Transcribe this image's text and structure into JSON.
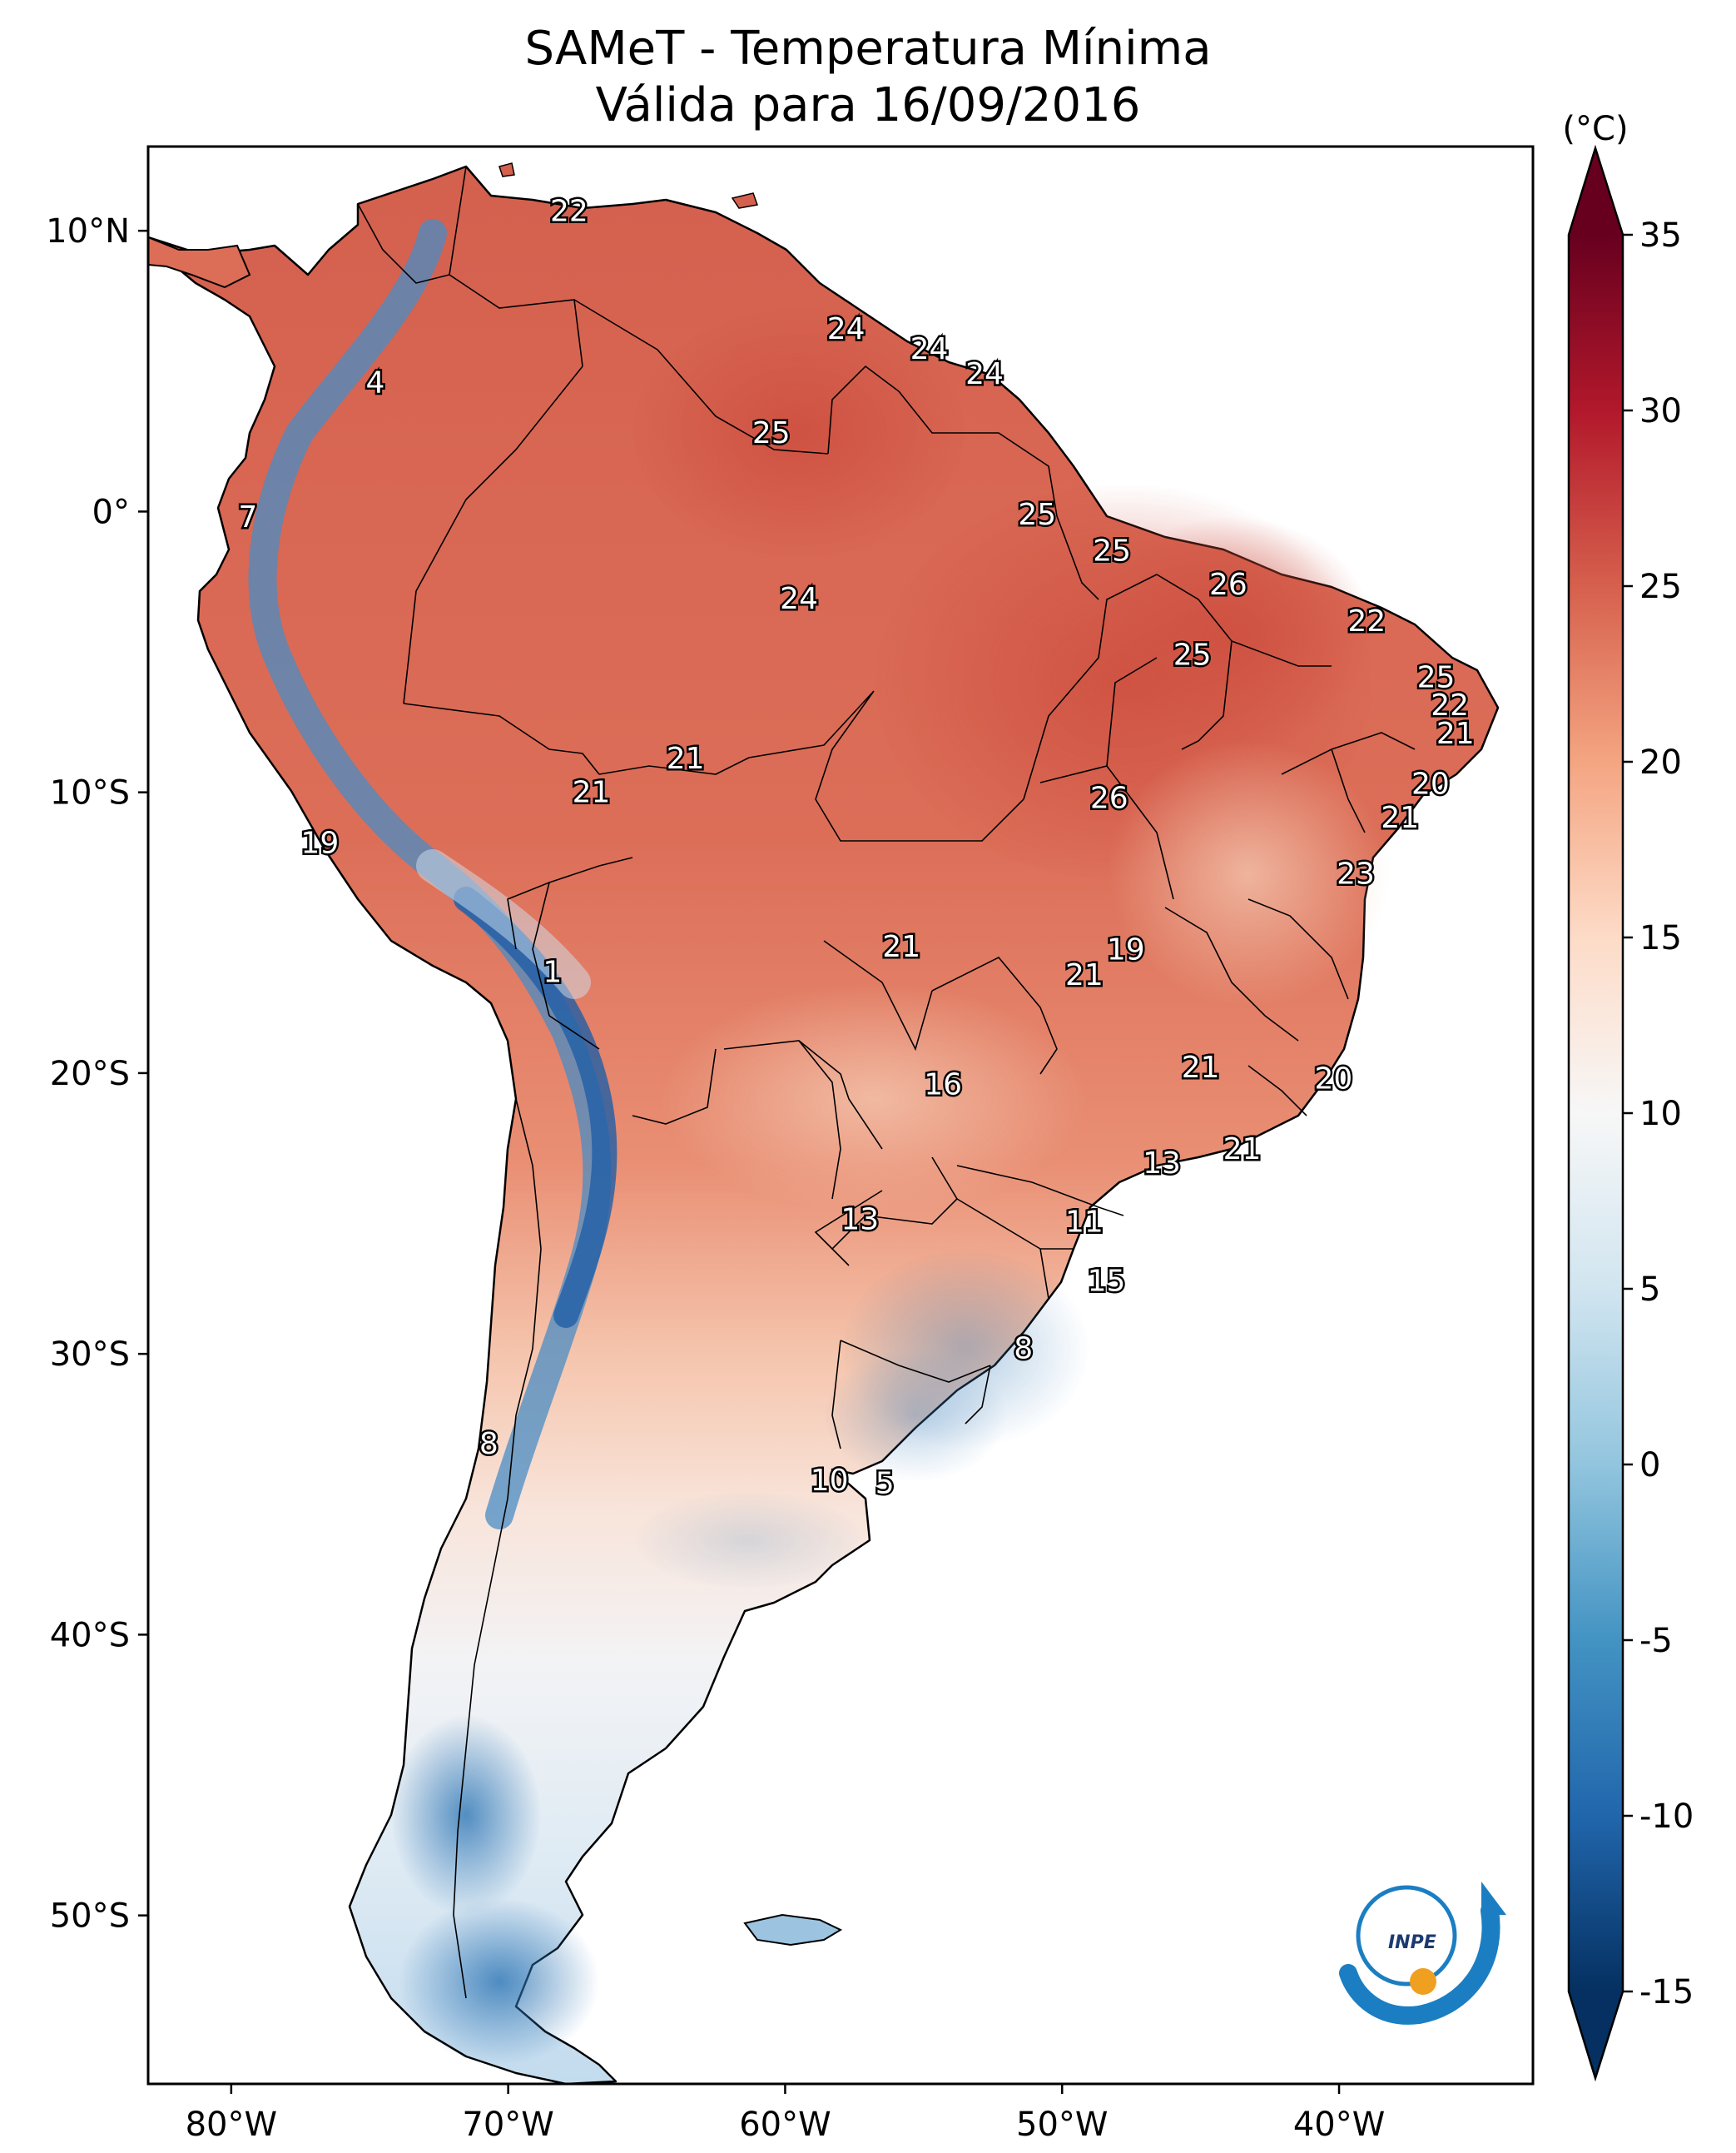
{
  "title": {
    "line1": "SAMeT - Temperatura Mínima",
    "line2": "Válida para 16/09/2016"
  },
  "colorbar": {
    "unit": "(°C)",
    "ticks": [
      "35",
      "30",
      "25",
      "20",
      "15",
      "10",
      "5",
      "0",
      "-5",
      "-10",
      "-15"
    ],
    "tick_values": [
      35,
      30,
      25,
      20,
      15,
      10,
      5,
      0,
      -5,
      -10,
      -15
    ],
    "min": -15,
    "max": 35,
    "colors": [
      "#053061",
      "#2166ac",
      "#4393c3",
      "#92c5de",
      "#d1e5f0",
      "#f7f7f7",
      "#fddbc7",
      "#f4a582",
      "#d6604d",
      "#b2182b",
      "#67001f"
    ]
  },
  "axes": {
    "lat_ticks": [
      "10°N",
      "0°",
      "10°S",
      "20°S",
      "30°S",
      "40°S",
      "50°S"
    ],
    "lat_values": [
      10,
      0,
      -10,
      -20,
      -30,
      -40,
      -50
    ],
    "lon_ticks": [
      "80°W",
      "70°W",
      "60°W",
      "50°W",
      "40°W"
    ],
    "lon_values": [
      -80,
      -70,
      -60,
      -50,
      -40
    ],
    "lon_range": [
      -83,
      -33
    ],
    "lat_range": [
      -56,
      13
    ]
  },
  "logo": {
    "text": "INPE",
    "accent": "#1b7ec2",
    "dot": "#f0a020"
  },
  "stations": [
    {
      "v": "22",
      "lon": -67.8,
      "lat": 10.7
    },
    {
      "v": "24",
      "lon": -57.8,
      "lat": 6.5
    },
    {
      "v": "24",
      "lon": -54.8,
      "lat": 5.8
    },
    {
      "v": "24",
      "lon": -52.8,
      "lat": 4.9
    },
    {
      "v": "4",
      "lon": -74.8,
      "lat": 4.6
    },
    {
      "v": "25",
      "lon": -60.5,
      "lat": 2.8
    },
    {
      "v": "7",
      "lon": -79.4,
      "lat": -0.2
    },
    {
      "v": "25",
      "lon": -50.9,
      "lat": -0.1
    },
    {
      "v": "25",
      "lon": -48.2,
      "lat": -1.4
    },
    {
      "v": "26",
      "lon": -44.0,
      "lat": -2.6
    },
    {
      "v": "24",
      "lon": -59.5,
      "lat": -3.1
    },
    {
      "v": "22",
      "lon": -39.0,
      "lat": -3.9
    },
    {
      "v": "25",
      "lon": -45.3,
      "lat": -5.1
    },
    {
      "v": "25",
      "lon": -36.5,
      "lat": -5.9
    },
    {
      "v": "22",
      "lon": -36.0,
      "lat": -6.9
    },
    {
      "v": "21",
      "lon": -35.8,
      "lat": -7.9
    },
    {
      "v": "21",
      "lon": -63.6,
      "lat": -8.8
    },
    {
      "v": "20",
      "lon": -36.7,
      "lat": -9.7
    },
    {
      "v": "21",
      "lon": -67.0,
      "lat": -10.0
    },
    {
      "v": "26",
      "lon": -48.3,
      "lat": -10.2
    },
    {
      "v": "21",
      "lon": -37.8,
      "lat": -10.9
    },
    {
      "v": "19",
      "lon": -76.8,
      "lat": -11.8
    },
    {
      "v": "23",
      "lon": -39.4,
      "lat": -12.9
    },
    {
      "v": "21",
      "lon": -55.8,
      "lat": -15.5
    },
    {
      "v": "19",
      "lon": -47.7,
      "lat": -15.6
    },
    {
      "v": "21",
      "lon": -49.2,
      "lat": -16.5
    },
    {
      "v": "1",
      "lon": -68.4,
      "lat": -16.4
    },
    {
      "v": "16",
      "lon": -54.3,
      "lat": -20.4
    },
    {
      "v": "21",
      "lon": -45.0,
      "lat": -19.8
    },
    {
      "v": "20",
      "lon": -40.2,
      "lat": -20.2
    },
    {
      "v": "21",
      "lon": -43.5,
      "lat": -22.7
    },
    {
      "v": "13",
      "lon": -46.4,
      "lat": -23.2
    },
    {
      "v": "13",
      "lon": -57.3,
      "lat": -25.2
    },
    {
      "v": "11",
      "lon": -49.2,
      "lat": -25.3
    },
    {
      "v": "15",
      "lon": -48.4,
      "lat": -27.4
    },
    {
      "v": "8",
      "lon": -51.4,
      "lat": -29.8
    },
    {
      "v": "8",
      "lon": -70.7,
      "lat": -33.2
    },
    {
      "v": "10",
      "lon": -58.4,
      "lat": -34.5
    },
    {
      "v": "5",
      "lon": -56.4,
      "lat": -34.6
    }
  ]
}
